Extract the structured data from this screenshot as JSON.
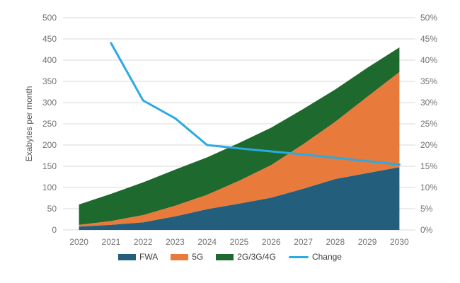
{
  "chart": {
    "background": "#ffffff",
    "gridline_color": "#d9d9d9",
    "tick_text_color": "#737373",
    "axis_title_color": "#595959",
    "legend_text_color": "#404040"
  },
  "chart_data": {
    "type": "area",
    "subtype": "stacked-area-with-secondary-line",
    "title": "",
    "xlabel": "",
    "ylabel": "Exabytes per month",
    "x": [
      2020,
      2021,
      2022,
      2023,
      2024,
      2025,
      2026,
      2027,
      2028,
      2029,
      2030
    ],
    "series": [
      {
        "name": "FWA",
        "kind": "area",
        "axis": "left",
        "color": "#235F7D",
        "values": [
          8,
          12,
          18,
          32,
          49,
          62,
          76,
          97,
          120,
          134,
          148
        ]
      },
      {
        "name": "5G",
        "kind": "area",
        "axis": "left",
        "color": "#E87A3C",
        "values": [
          4,
          9,
          17,
          25,
          34,
          54,
          77,
          105,
          135,
          180,
          224
        ]
      },
      {
        "name": "2G/3G/4G",
        "kind": "area",
        "axis": "left",
        "color": "#1E692D",
        "values": [
          48,
          64,
          77,
          85,
          88,
          89,
          88,
          83,
          76,
          68,
          58
        ]
      },
      {
        "name": "Change",
        "kind": "line",
        "axis": "right",
        "color": "#2AAAE1",
        "values": [
          null,
          44,
          30.5,
          26.3,
          20,
          19.2,
          18.5,
          17.8,
          17,
          16.2,
          15.4
        ]
      }
    ],
    "stacked_totals": [
      60,
      85,
      112,
      142,
      171,
      205,
      241,
      285,
      331,
      382,
      430
    ],
    "y_left": {
      "min": 0,
      "max": 500,
      "step": 50,
      "format": "number"
    },
    "y_right": {
      "min": 0,
      "max": 50,
      "step": 5,
      "format": "percent"
    },
    "grid": true,
    "legend_position": "bottom"
  }
}
